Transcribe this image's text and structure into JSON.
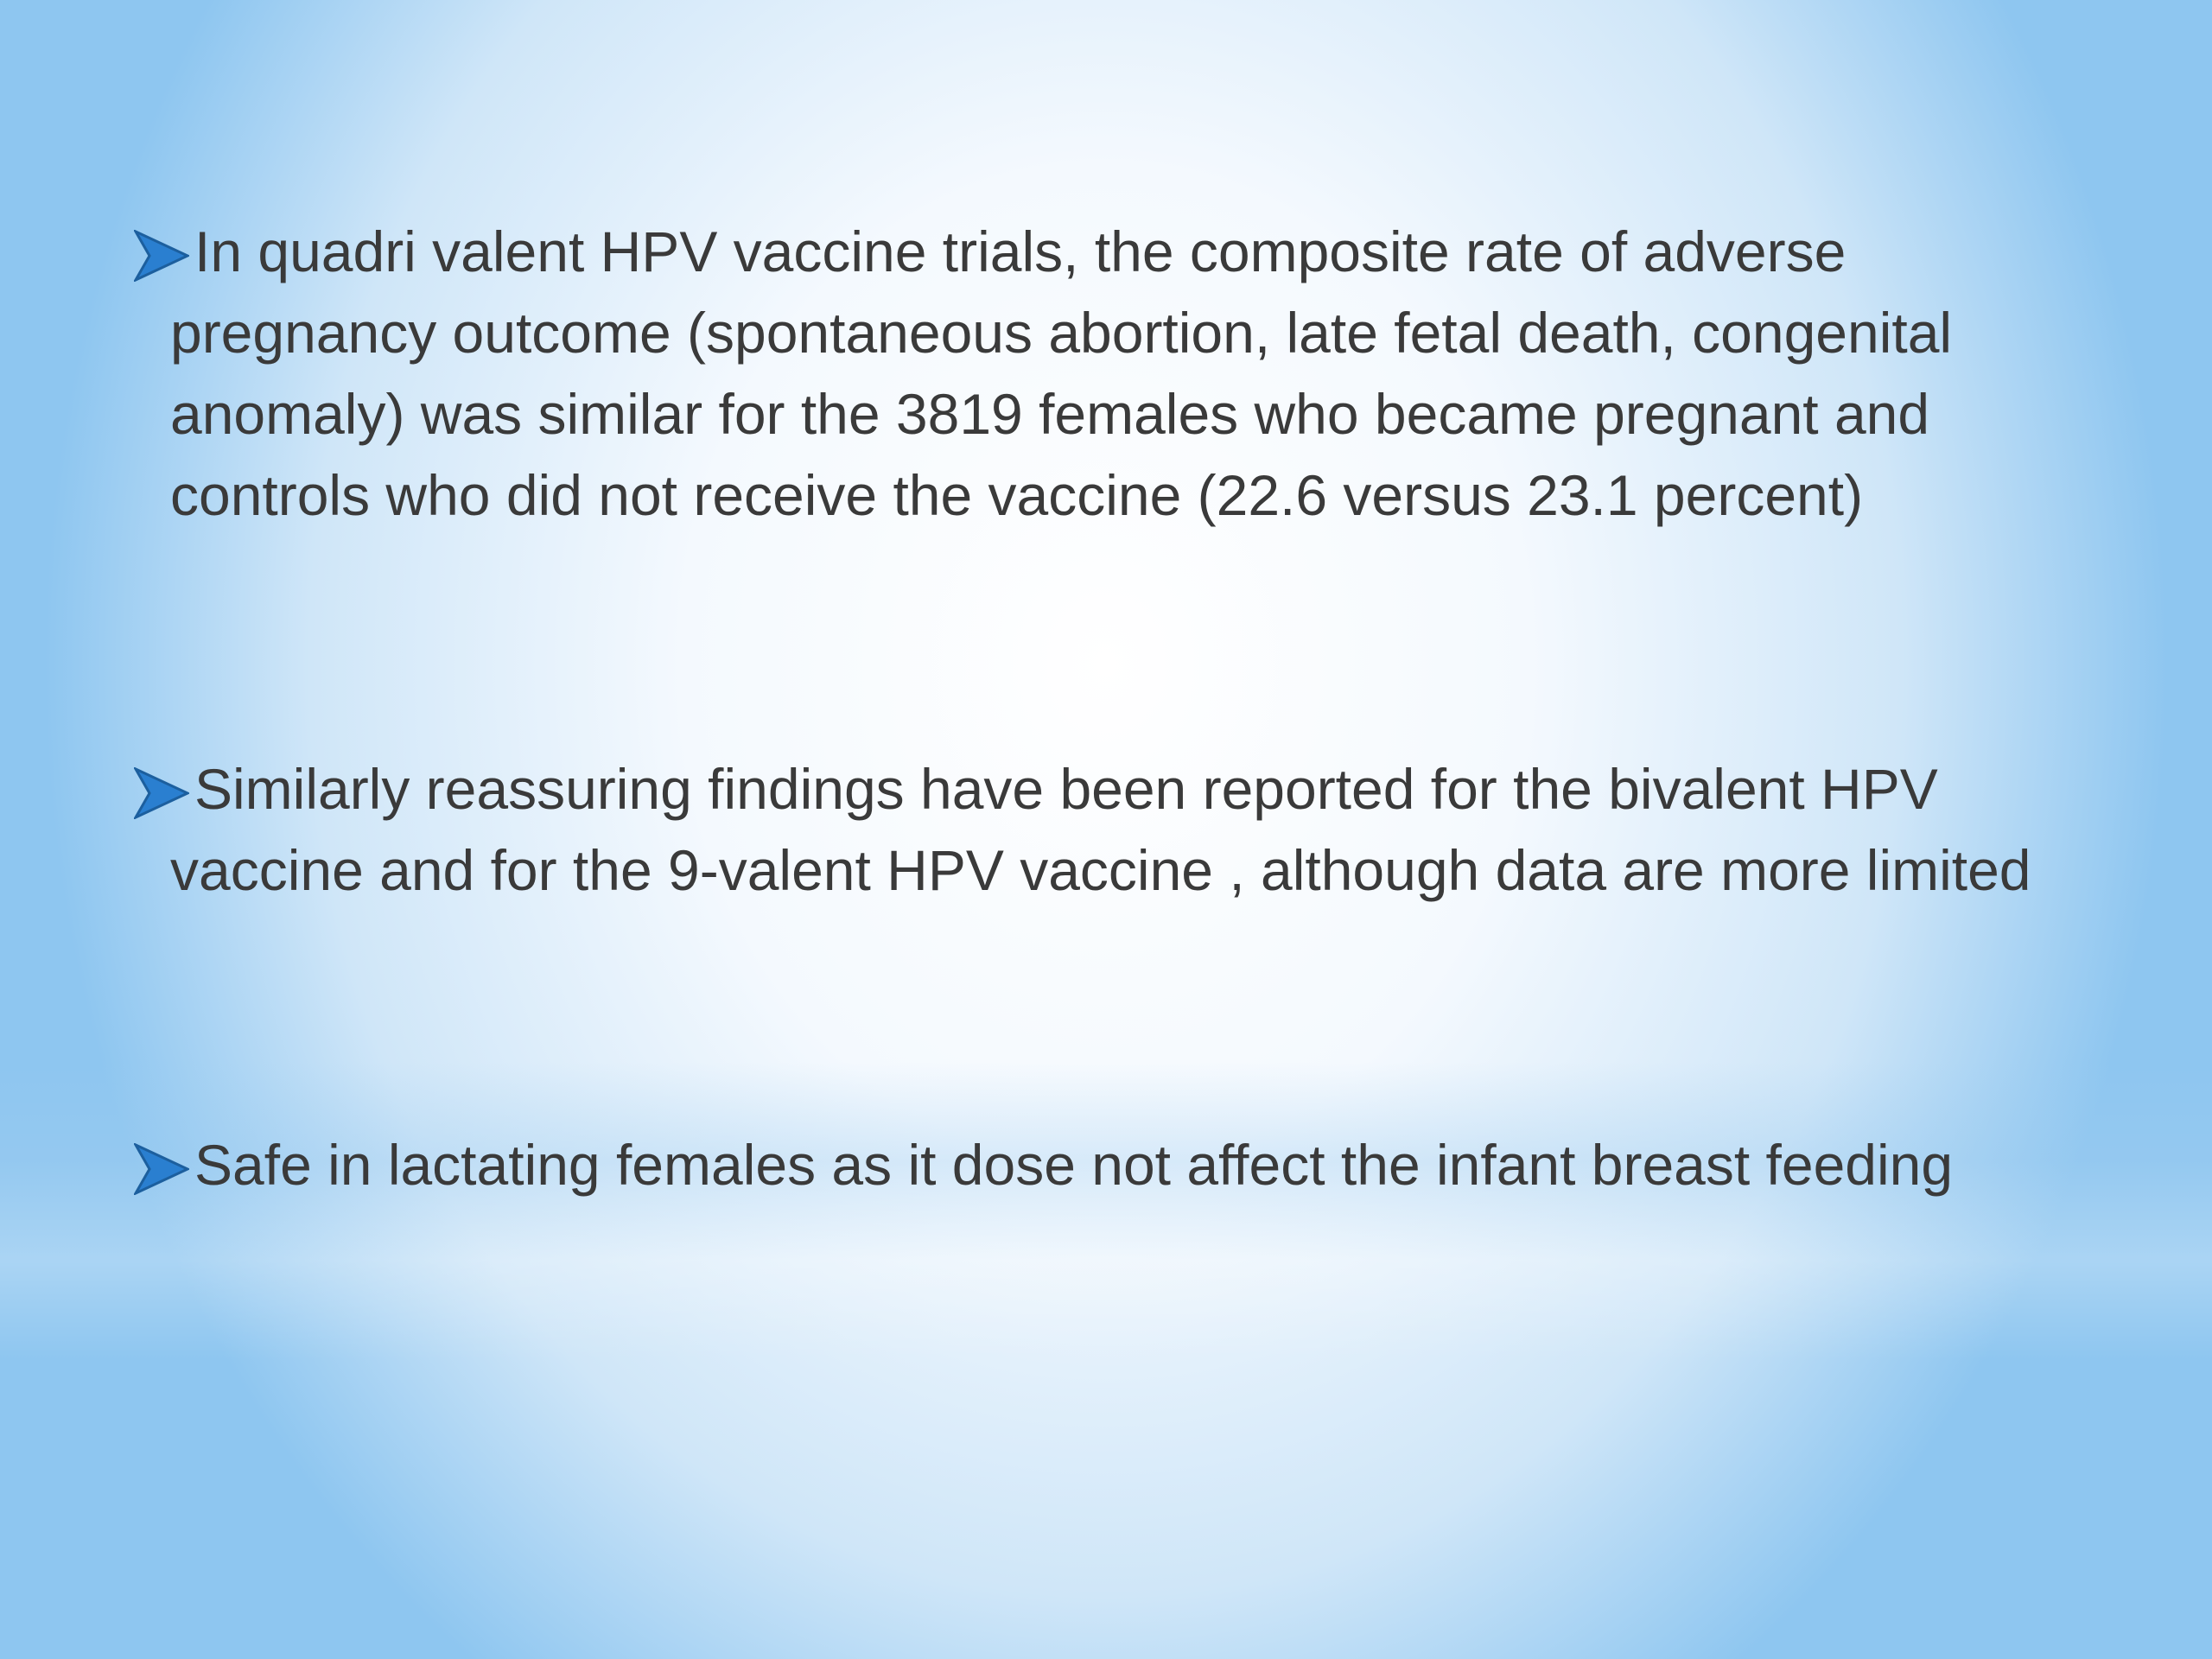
{
  "bullets": [
    "In quadri valent HPV vaccine trials, the composite rate of adverse pregnancy outcome (spontaneous abortion, late fetal death, congenital anomaly) was similar for the 3819 females who became pregnant and controls who did not receive the vaccine (22.6 versus 23.1 percent)",
    "Similarly reassuring findings have been reported for the bivalent HPV vaccine and for the 9-valent HPV vaccine , although data are more limited",
    "Safe in lactating females as it dose not affect the infant breast feeding"
  ]
}
